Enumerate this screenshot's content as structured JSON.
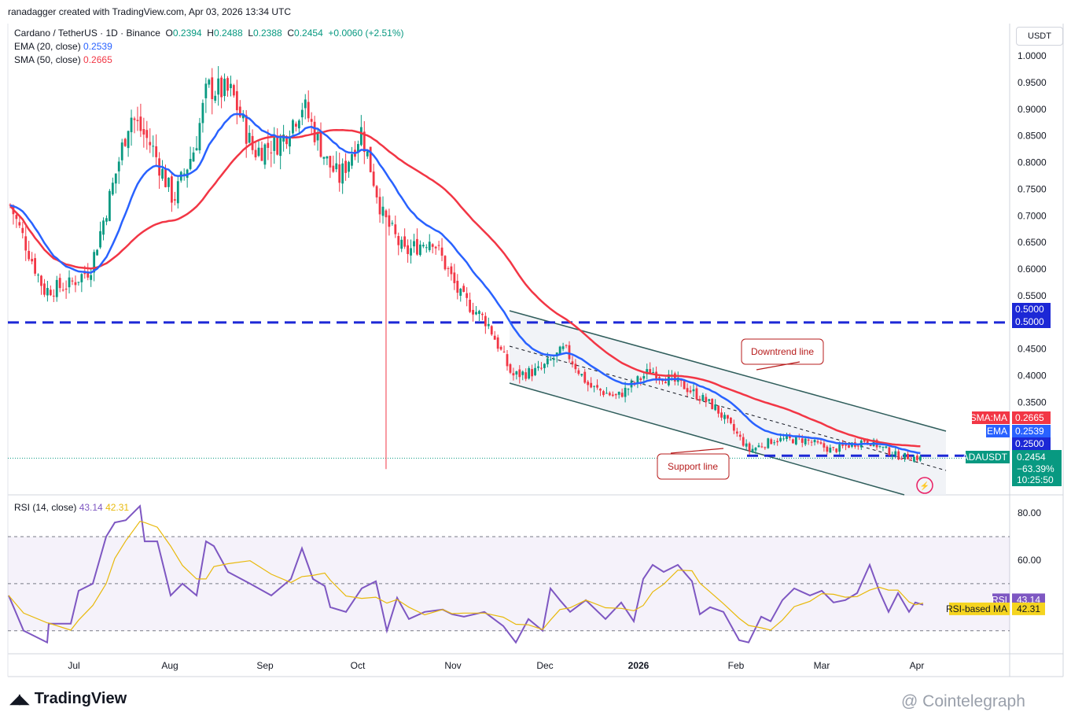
{
  "credit": "ranadagger created with TradingView.com, Apr 03, 2026 13:34 UTC",
  "legend": {
    "symbol": "Cardano / TetherUS · 1D · Binance",
    "o_label": "O",
    "o": "0.2394",
    "h_label": "H",
    "h": "0.2488",
    "l_label": "L",
    "l": "0.2388",
    "c_label": "C",
    "c": "0.2454",
    "change": "+0.0060 (+2.51%)",
    "ema_label": "EMA (20, close)",
    "ema_value": "0.2539",
    "sma_label": "SMA (50, close)",
    "sma_value": "0.2665"
  },
  "rsi_legend": {
    "label": "RSI (14, close)",
    "rsi": "43.14",
    "ma": "42.31"
  },
  "axis_unit": "USDT",
  "colors": {
    "up": "#089981",
    "down": "#f23645",
    "ema": "#2962ff",
    "sma": "#f23645",
    "rsi": "#7e57c2",
    "rsi_ma": "#e8b90c",
    "level": "#1c28d6"
  },
  "price_ticks": [
    "1.0000",
    "0.9500",
    "0.9000",
    "0.8500",
    "0.8000",
    "0.7500",
    "0.7000",
    "0.6500",
    "0.6000",
    "0.5500",
    "0.4500",
    "0.4000",
    "0.3500"
  ],
  "rsi_ticks": [
    "80.00",
    "60.00"
  ],
  "x_ticks": [
    "Jul",
    "Aug",
    "Sep",
    "Oct",
    "Nov",
    "Dec",
    "2026",
    "Feb",
    "Mar",
    "Apr"
  ],
  "badges": {
    "level_top_a": "0.5000",
    "level_top_b": "0.5000",
    "sma_ma_label": "SMA:MA",
    "sma_ma_value": "0.2665",
    "ema_label": "EMA",
    "ema_value": "0.2539",
    "level_low": "0.2500",
    "symbol": "ADAUSDT",
    "price": "0.2454",
    "pct": "−63.39%",
    "countdown": "10:25:50",
    "rsi_label": "RSI",
    "rsi_value": "43.14",
    "rsi_ma_label": "RSI-based MA",
    "rsi_ma_value": "42.31"
  },
  "annotations": {
    "downtrend": "Downtrend line",
    "support": "Support line"
  },
  "logo": "TradingView",
  "watermark": "@ Cointelegraph",
  "chart_data": {
    "type": "candlestick",
    "title": "Cardano / TetherUS · 1D · Binance",
    "x_range": [
      "2025-06-11",
      "2026-04-03"
    ],
    "ylim": [
      0.18,
      1.02
    ],
    "price_path": [
      {
        "date": "2025-06-11",
        "close": 0.72
      },
      {
        "date": "2025-06-22",
        "close": 0.56
      },
      {
        "date": "2025-06-30",
        "close": 0.57
      },
      {
        "date": "2025-07-07",
        "close": 0.6
      },
      {
        "date": "2025-07-14",
        "close": 0.75
      },
      {
        "date": "2025-07-20",
        "close": 0.89
      },
      {
        "date": "2025-07-27",
        "close": 0.83
      },
      {
        "date": "2025-08-03",
        "close": 0.73
      },
      {
        "date": "2025-08-10",
        "close": 0.83
      },
      {
        "date": "2025-08-14",
        "close": 0.94
      },
      {
        "date": "2025-08-22",
        "close": 0.93
      },
      {
        "date": "2025-08-29",
        "close": 0.82
      },
      {
        "date": "2025-09-07",
        "close": 0.84
      },
      {
        "date": "2025-09-14",
        "close": 0.91
      },
      {
        "date": "2025-09-22",
        "close": 0.8
      },
      {
        "date": "2025-09-26",
        "close": 0.77
      },
      {
        "date": "2025-10-03",
        "close": 0.86
      },
      {
        "date": "2025-10-10",
        "close": 0.7
      },
      {
        "date": "2025-10-17",
        "close": 0.63
      },
      {
        "date": "2025-10-26",
        "close": 0.66
      },
      {
        "date": "2025-11-04",
        "close": 0.55
      },
      {
        "date": "2025-11-13",
        "close": 0.5
      },
      {
        "date": "2025-11-21",
        "close": 0.4
      },
      {
        "date": "2025-11-30",
        "close": 0.41
      },
      {
        "date": "2025-12-08",
        "close": 0.45
      },
      {
        "date": "2025-12-16",
        "close": 0.38
      },
      {
        "date": "2025-12-25",
        "close": 0.36
      },
      {
        "date": "2026-01-05",
        "close": 0.41
      },
      {
        "date": "2026-01-16",
        "close": 0.38
      },
      {
        "date": "2026-01-26",
        "close": 0.34
      },
      {
        "date": "2026-02-02",
        "close": 0.29
      },
      {
        "date": "2026-02-06",
        "close": 0.26
      },
      {
        "date": "2026-02-14",
        "close": 0.28
      },
      {
        "date": "2026-02-24",
        "close": 0.28
      },
      {
        "date": "2026-03-05",
        "close": 0.26
      },
      {
        "date": "2026-03-16",
        "close": 0.28
      },
      {
        "date": "2026-03-26",
        "close": 0.25
      },
      {
        "date": "2026-04-03",
        "close": 0.2454
      }
    ],
    "ema20_last": 0.2539,
    "sma50_last": 0.2665,
    "horizontal_levels": [
      0.5,
      0.25
    ],
    "rsi": {
      "period": 14,
      "last": 43.14,
      "ma_last": 42.31,
      "bands": [
        70,
        50,
        30
      ],
      "ylim": [
        20,
        90
      ]
    }
  }
}
